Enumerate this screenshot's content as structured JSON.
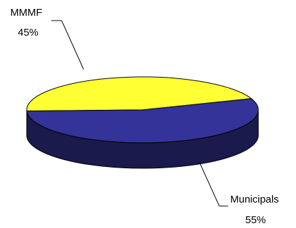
{
  "chart_data": {
    "type": "pie",
    "style": "3d",
    "slices": [
      {
        "label": "MMMF",
        "value": 45,
        "value_label": "45%",
        "color": "#ffff33",
        "side_color": "#8c8c00"
      },
      {
        "label": "Municipals",
        "value": 55,
        "value_label": "55%",
        "color": "#333399",
        "side_color": "#1a1a4d"
      }
    ],
    "title": "",
    "legend": "none"
  }
}
